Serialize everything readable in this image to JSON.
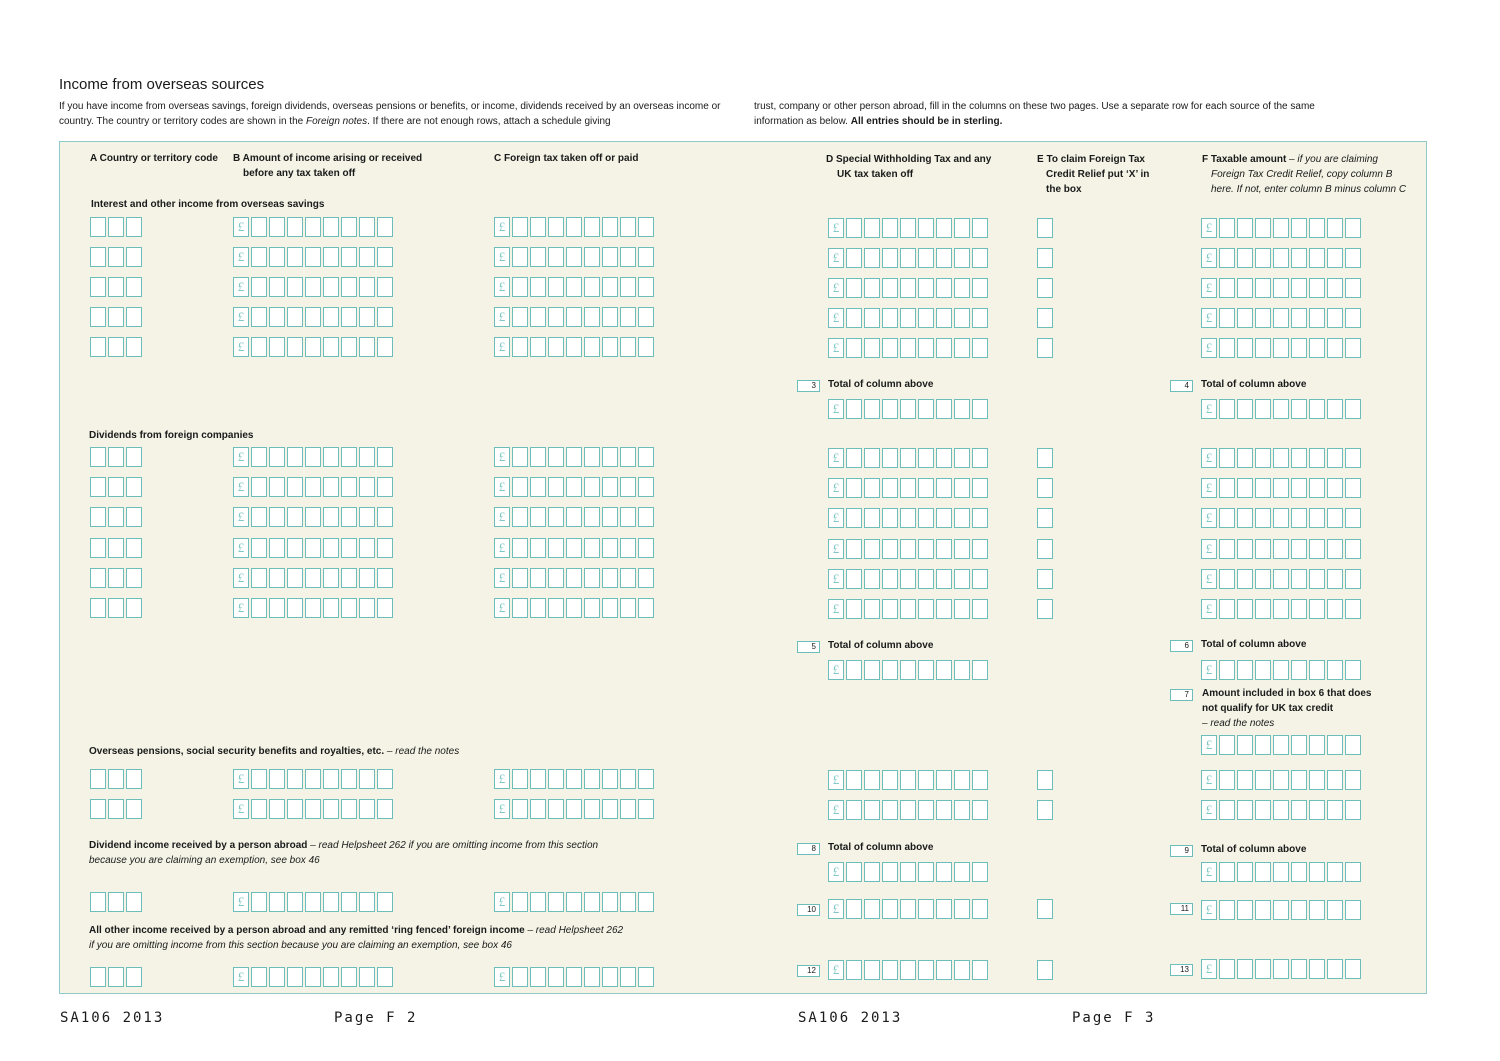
{
  "title": "Income from overseas sources",
  "intro": {
    "left_a": "If you have income from overseas savings, foreign dividends, overseas pensions or benefits, or income, dividends received by an overseas income or country. The country or territory codes are shown in the ",
    "left_italic": "Foreign notes",
    "left_b": ". If there are not enough rows, attach a schedule giving",
    "right_a": "trust, company or other person abroad, fill in the columns on these two pages. Use a separate row for each source of the same information as below. ",
    "right_bold": "All entries should be in sterling."
  },
  "headers": {
    "a": "A Country or territory code",
    "b1": "B Amount of income arising or received",
    "b2": "before any tax taken off",
    "c": "C Foreign tax taken off or paid",
    "d1": "D Special Withholding Tax and any",
    "d2": "UK tax taken off",
    "e1": "E To claim Foreign Tax",
    "e2": "Credit Relief put ‘X’ in",
    "e3": "the box",
    "f_bold": "F Taxable amount",
    "f1": " – if you are claiming",
    "f2": "Foreign Tax Credit Relief, copy column B",
    "f3": "here. If not, enter column B minus column C"
  },
  "sections": {
    "interest": "Interest and other income from overseas savings",
    "dividends": "Dividends from foreign companies",
    "pensions_bold": "Overseas pensions, social security benefits and royalties, etc.",
    "pensions_italic": " – read the notes",
    "div_abroad_bold": "Dividend income received by a person abroad",
    "div_abroad_italic1": " – read Helpsheet 262 if you are omitting income from this section",
    "div_abroad_italic2": "because you are claiming an exemption, see box 46",
    "other_bold": "All other income received by a person abroad and any remitted ‘ring fenced’ foreign income",
    "other_italic1": " – read Helpsheet 262",
    "other_italic2": "if you are omitting income from this section because you are claiming an exemption, see box 46"
  },
  "currency_symbol": "£",
  "totals": {
    "label": "Total of column above",
    "box3": "3",
    "box4": "4",
    "box5": "5",
    "box6": "6",
    "box7": "7",
    "box8": "8",
    "box9": "9",
    "box10": "10",
    "box11": "11",
    "box12": "12",
    "box13": "13"
  },
  "box7_text": {
    "l1": "Amount included in box 6 that does",
    "l2": "not qualify for UK tax credit",
    "l3": "– read the notes"
  },
  "footer": {
    "left_form": "SA106 2013",
    "left_page": "Page F 2",
    "right_form": "SA106 2013",
    "right_page": "Page F 3"
  },
  "colors": {
    "panel": "#f4f3e6",
    "box_border": "#6dbdba",
    "pound": "#7fc8c4"
  }
}
